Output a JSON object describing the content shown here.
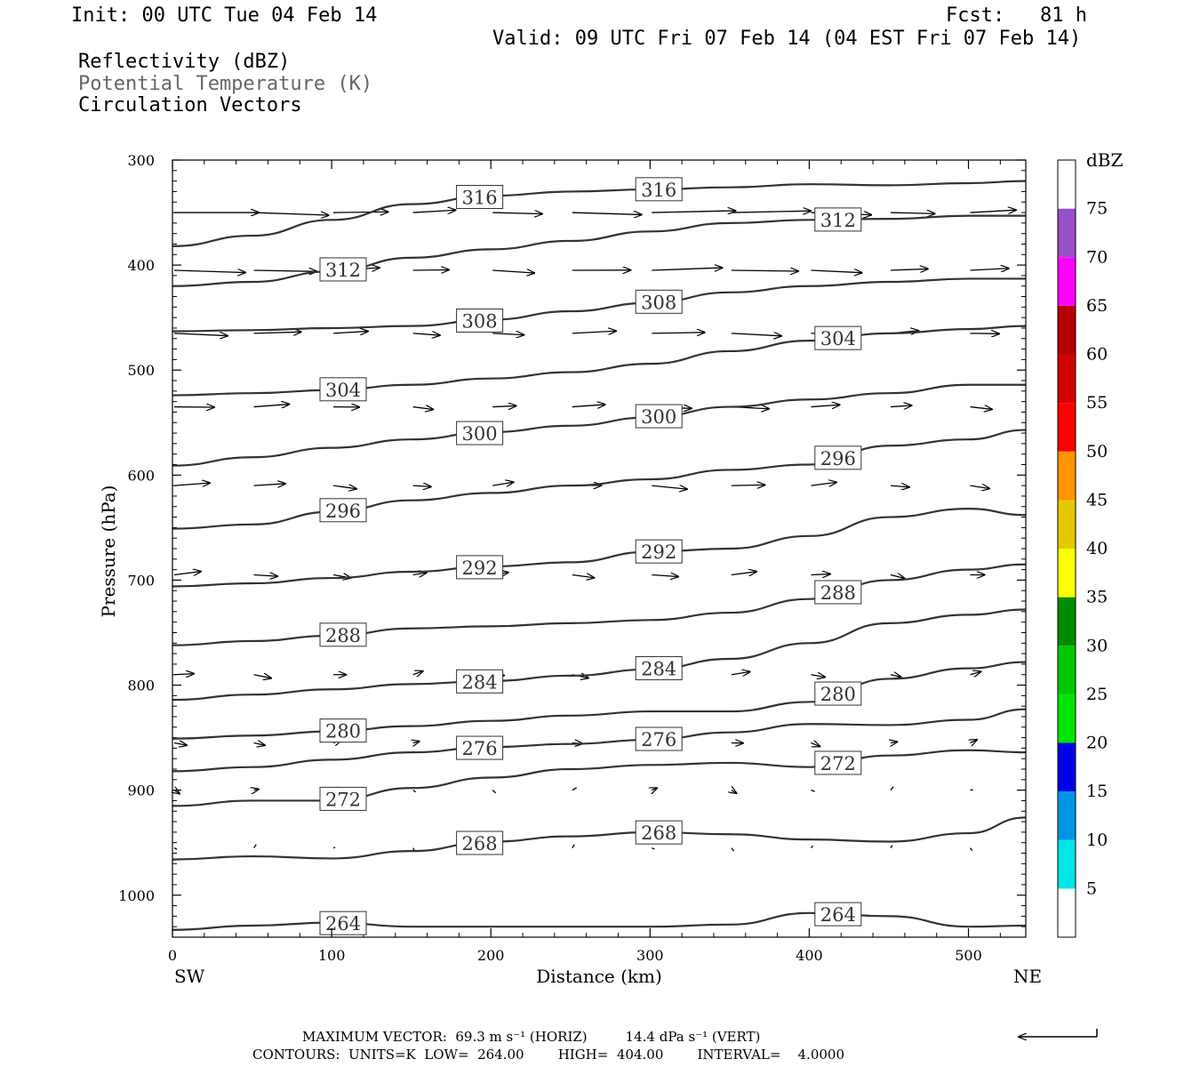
{
  "header": {
    "init": "Init: 00 UTC Tue 04 Feb 14",
    "fcst": "Fcst:   81 h",
    "valid": "Valid: 09 UTC Fri 07 Feb 14 (04 EST Fri 07 Feb 14)",
    "field1": "Reflectivity (dBZ)",
    "field2": "Potential Temperature (K)",
    "field3": "Circulation Vectors"
  },
  "footer": {
    "max_vector": "MAXIMUM VECTOR:  69.3 m s⁻¹ (HORIZ)         14.4 dPa s⁻¹ (VERT)",
    "contours": "CONTOURS:  UNITS=K  LOW=  264.00        HIGH=  404.00        INTERVAL=    4.0000"
  },
  "colors": {
    "contour": "#333333",
    "axis": "#000000"
  },
  "chart_data": {
    "type": "cross-section",
    "xlabel": "Distance (km)",
    "ylabel": "Pressure (hPa)",
    "xlim": [
      0,
      536
    ],
    "ylim": [
      1040,
      300
    ],
    "xticks": [
      0,
      100,
      200,
      300,
      400,
      500
    ],
    "yticks": [
      300,
      400,
      500,
      600,
      700,
      800,
      900,
      1000
    ],
    "x_end_labels": {
      "left": "SW",
      "right": "NE"
    },
    "colorbar": {
      "unit": "dBZ",
      "ticks": [
        5,
        10,
        15,
        20,
        25,
        30,
        35,
        40,
        45,
        50,
        55,
        60,
        65,
        70,
        75
      ],
      "colors": [
        "#ffffff",
        "#00e6e6",
        "#0096e6",
        "#0000e6",
        "#00e600",
        "#00c800",
        "#008c00",
        "#ffff00",
        "#e6c800",
        "#ff9600",
        "#ff0000",
        "#d20000",
        "#b40000",
        "#ff00ff",
        "#9650c8",
        "#ffffff"
      ]
    },
    "isentropes": [
      {
        "theta": 316,
        "x": [
          0,
          50,
          100,
          150,
          200,
          250,
          300,
          350,
          400,
          450,
          500,
          536
        ],
        "p": [
          382,
          372,
          357,
          342,
          334,
          330,
          328,
          326,
          323,
          324,
          322,
          320
        ]
      },
      {
        "theta": 312,
        "x": [
          0,
          50,
          100,
          150,
          200,
          250,
          300,
          350,
          400,
          450,
          500,
          536
        ],
        "p": [
          420,
          416,
          406,
          393,
          385,
          377,
          368,
          360,
          357,
          356,
          353,
          353
        ]
      },
      {
        "theta": 308,
        "x": [
          0,
          50,
          100,
          150,
          200,
          250,
          300,
          350,
          400,
          450,
          500,
          536
        ],
        "p": [
          463,
          462,
          460,
          458,
          452,
          444,
          436,
          426,
          420,
          416,
          413,
          413
        ]
      },
      {
        "theta": 304,
        "x": [
          0,
          50,
          100,
          150,
          200,
          250,
          300,
          350,
          400,
          450,
          500,
          536
        ],
        "p": [
          524,
          522,
          519,
          514,
          508,
          502,
          494,
          482,
          472,
          465,
          461,
          458
        ]
      },
      {
        "theta": 300,
        "x": [
          0,
          50,
          100,
          150,
          200,
          250,
          300,
          350,
          400,
          450,
          500,
          536
        ],
        "p": [
          591,
          583,
          574,
          566,
          559,
          553,
          545,
          535,
          528,
          522,
          514,
          514
        ]
      },
      {
        "theta": 296,
        "x": [
          0,
          50,
          100,
          150,
          200,
          250,
          300,
          350,
          400,
          450,
          500,
          536
        ],
        "p": [
          651,
          647,
          635,
          624,
          617,
          610,
          604,
          595,
          590,
          572,
          566,
          557
        ]
      },
      {
        "theta": 292,
        "x": [
          0,
          50,
          100,
          150,
          200,
          250,
          300,
          350,
          400,
          450,
          500,
          536
        ],
        "p": [
          706,
          703,
          698,
          692,
          687,
          683,
          673,
          670,
          658,
          640,
          632,
          638
        ]
      },
      {
        "theta": 288,
        "x": [
          0,
          50,
          100,
          150,
          200,
          250,
          300,
          350,
          400,
          450,
          500,
          536
        ],
        "p": [
          762,
          758,
          753,
          746,
          744,
          741,
          738,
          731,
          718,
          700,
          690,
          685
        ]
      },
      {
        "theta": 284,
        "x": [
          0,
          50,
          100,
          150,
          200,
          250,
          300,
          350,
          400,
          450,
          500,
          536
        ],
        "p": [
          814,
          809,
          804,
          799,
          796,
          791,
          785,
          775,
          760,
          741,
          733,
          728
        ]
      },
      {
        "theta": 280,
        "x": [
          0,
          50,
          100,
          150,
          200,
          250,
          300,
          350,
          400,
          450,
          500,
          536
        ],
        "p": [
          851,
          848,
          844,
          839,
          834,
          829,
          825,
          825,
          816,
          794,
          784,
          778
        ]
      },
      {
        "theta": 276,
        "x": [
          0,
          50,
          100,
          150,
          200,
          250,
          300,
          350,
          400,
          450,
          500,
          536
        ],
        "p": [
          882,
          878,
          871,
          864,
          859,
          856,
          852,
          845,
          837,
          838,
          833,
          823
        ]
      },
      {
        "theta": 272,
        "x": [
          0,
          50,
          100,
          150,
          200,
          250,
          300,
          350,
          400,
          450,
          500,
          536
        ],
        "p": [
          915,
          910,
          910,
          898,
          888,
          880,
          876,
          874,
          878,
          867,
          862,
          864
        ]
      },
      {
        "theta": 268,
        "x": [
          0,
          50,
          100,
          150,
          200,
          250,
          300,
          350,
          400,
          450,
          500,
          536
        ],
        "p": [
          966,
          963,
          965,
          958,
          949,
          944,
          940,
          942,
          947,
          949,
          941,
          926
        ]
      },
      {
        "theta": 264,
        "x": [
          0,
          50,
          100,
          150,
          200,
          250,
          300,
          350,
          400,
          450,
          500,
          536
        ],
        "p": [
          1033,
          1029,
          1026,
          1030,
          1030,
          1030,
          1030,
          1028,
          1017,
          1020,
          1030,
          1029
        ]
      }
    ],
    "vector_levels": [
      350,
      405,
      465,
      535,
      610,
      695,
      790,
      855,
      900,
      955
    ],
    "vector_x": [
      0,
      50,
      100,
      150,
      200,
      250,
      300,
      350,
      400,
      450,
      500
    ]
  }
}
